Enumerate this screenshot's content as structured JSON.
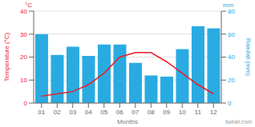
{
  "chart_data": {
    "type": "bar",
    "x_label": "Months",
    "y_label": "Temperature (°C)",
    "y2_label": "Rainfall (mm)",
    "categories": [
      "01",
      "02",
      "03",
      "04",
      "05",
      "06",
      "07",
      "08",
      "09",
      "10",
      "11",
      "12"
    ],
    "series": [
      {
        "type": "bar",
        "axis": "y2",
        "color": "#29ABE2",
        "values": [
          60,
          42,
          49,
          41,
          51,
          51,
          35,
          24,
          23,
          47,
          67,
          65
        ]
      },
      {
        "type": "line",
        "color": "#ED1C24",
        "values": [
          3,
          4,
          5,
          8,
          13,
          20,
          22,
          22,
          18,
          13,
          8,
          4
        ]
      }
    ],
    "ylim": [
      0,
      40
    ],
    "yticks": [
      0,
      10,
      20,
      30,
      40
    ],
    "y2lim": [
      0,
      80
    ],
    "y2ticks": [
      0,
      20,
      40,
      60,
      80
    ],
    "grid": true,
    "annotations": [
      "°C",
      "mm",
      "twinkl.com"
    ]
  }
}
